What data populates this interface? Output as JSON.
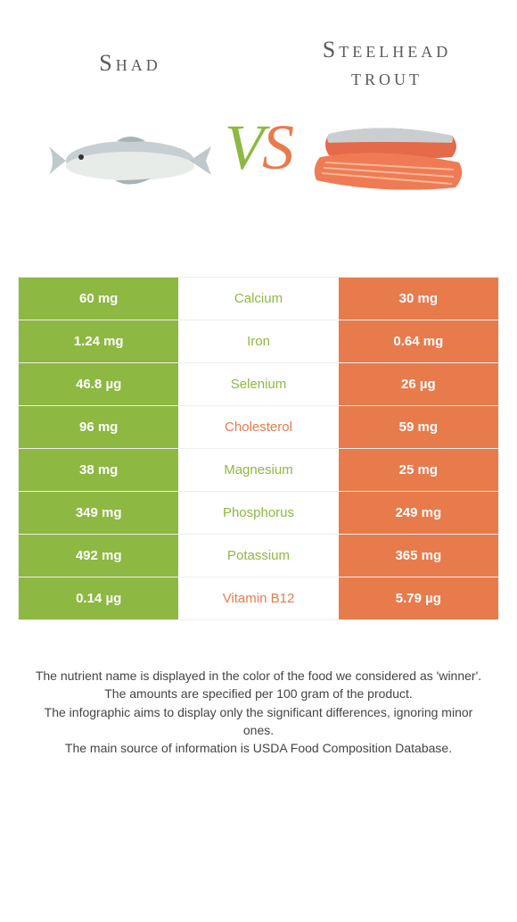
{
  "colors": {
    "left": "#8db842",
    "right": "#e87b4c",
    "text": "#444444"
  },
  "header": {
    "left_title": "Shad",
    "right_title": "Steelhead trout",
    "vs_v": "V",
    "vs_s": "S"
  },
  "rows": [
    {
      "nutrient": "Calcium",
      "left": "60 mg",
      "right": "30 mg",
      "winner": "left"
    },
    {
      "nutrient": "Iron",
      "left": "1.24 mg",
      "right": "0.64 mg",
      "winner": "left"
    },
    {
      "nutrient": "Selenium",
      "left": "46.8 µg",
      "right": "26 µg",
      "winner": "left"
    },
    {
      "nutrient": "Cholesterol",
      "left": "96 mg",
      "right": "59 mg",
      "winner": "right"
    },
    {
      "nutrient": "Magnesium",
      "left": "38 mg",
      "right": "25 mg",
      "winner": "left"
    },
    {
      "nutrient": "Phosphorus",
      "left": "349 mg",
      "right": "249 mg",
      "winner": "left"
    },
    {
      "nutrient": "Potassium",
      "left": "492 mg",
      "right": "365 mg",
      "winner": "left"
    },
    {
      "nutrient": "Vitamin B12",
      "left": "0.14 µg",
      "right": "5.79 µg",
      "winner": "right"
    }
  ],
  "footer": {
    "l1": "The nutrient name is displayed in the color of the food we considered as 'winner'.",
    "l2": "The amounts are specified per 100 gram of the product.",
    "l3": "The infographic aims to display only the significant differences, ignoring minor ones.",
    "l4": "The main source of information is USDA Food Composition Database."
  }
}
